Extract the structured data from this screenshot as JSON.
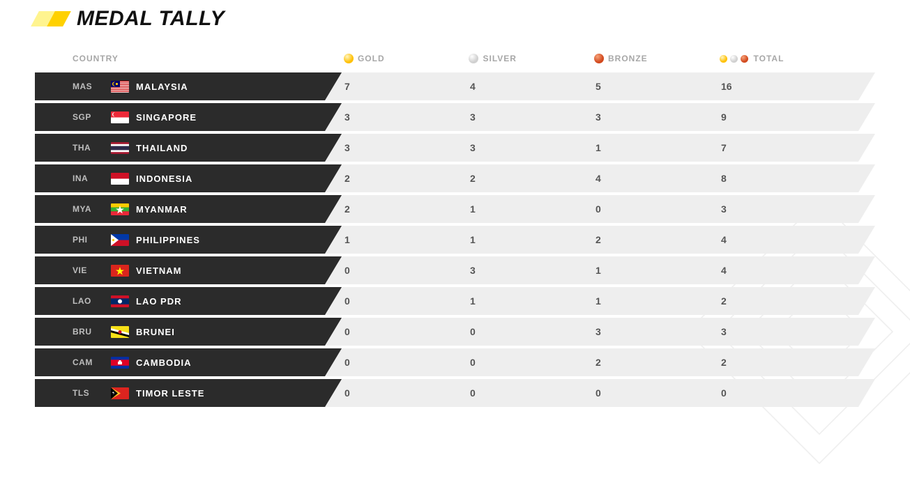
{
  "title": "MEDAL TALLY",
  "accent_colors": [
    "#fff48f",
    "#ffd100"
  ],
  "colors": {
    "gold": "#ffc107",
    "silver": "#d0d0d0",
    "bronze": "#d24a1f",
    "row_dark": "#2b2b2b",
    "row_light": "#eeeeee",
    "header_text": "#a7a7a7",
    "value_text": "#555555"
  },
  "headers": {
    "country": "COUNTRY",
    "gold": "GOLD",
    "silver": "SILVER",
    "bronze": "BRONZE",
    "total": "TOTAL"
  },
  "rows": [
    {
      "code": "MAS",
      "name": "MALAYSIA",
      "gold": "7",
      "silver": "4",
      "bronze": "5",
      "total": "16",
      "flag": "MAS"
    },
    {
      "code": "SGP",
      "name": "SINGAPORE",
      "gold": "3",
      "silver": "3",
      "bronze": "3",
      "total": "9",
      "flag": "SGP"
    },
    {
      "code": "THA",
      "name": "THAILAND",
      "gold": "3",
      "silver": "3",
      "bronze": "1",
      "total": "7",
      "flag": "THA"
    },
    {
      "code": "INA",
      "name": "INDONESIA",
      "gold": "2",
      "silver": "2",
      "bronze": "4",
      "total": "8",
      "flag": "INA"
    },
    {
      "code": "MYA",
      "name": "MYANMAR",
      "gold": "2",
      "silver": "1",
      "bronze": "0",
      "total": "3",
      "flag": "MYA"
    },
    {
      "code": "PHI",
      "name": "PHILIPPINES",
      "gold": "1",
      "silver": "1",
      "bronze": "2",
      "total": "4",
      "flag": "PHI"
    },
    {
      "code": "VIE",
      "name": "VIETNAM",
      "gold": "0",
      "silver": "3",
      "bronze": "1",
      "total": "4",
      "flag": "VIE"
    },
    {
      "code": "LAO",
      "name": "LAO PDR",
      "gold": "0",
      "silver": "1",
      "bronze": "1",
      "total": "2",
      "flag": "LAO"
    },
    {
      "code": "BRU",
      "name": "BRUNEI",
      "gold": "0",
      "silver": "0",
      "bronze": "3",
      "total": "3",
      "flag": "BRU"
    },
    {
      "code": "CAM",
      "name": "CAMBODIA",
      "gold": "0",
      "silver": "0",
      "bronze": "2",
      "total": "2",
      "flag": "CAM"
    },
    {
      "code": "TLS",
      "name": "TIMOR LESTE",
      "gold": "0",
      "silver": "0",
      "bronze": "0",
      "total": "0",
      "flag": "TLS"
    }
  ]
}
